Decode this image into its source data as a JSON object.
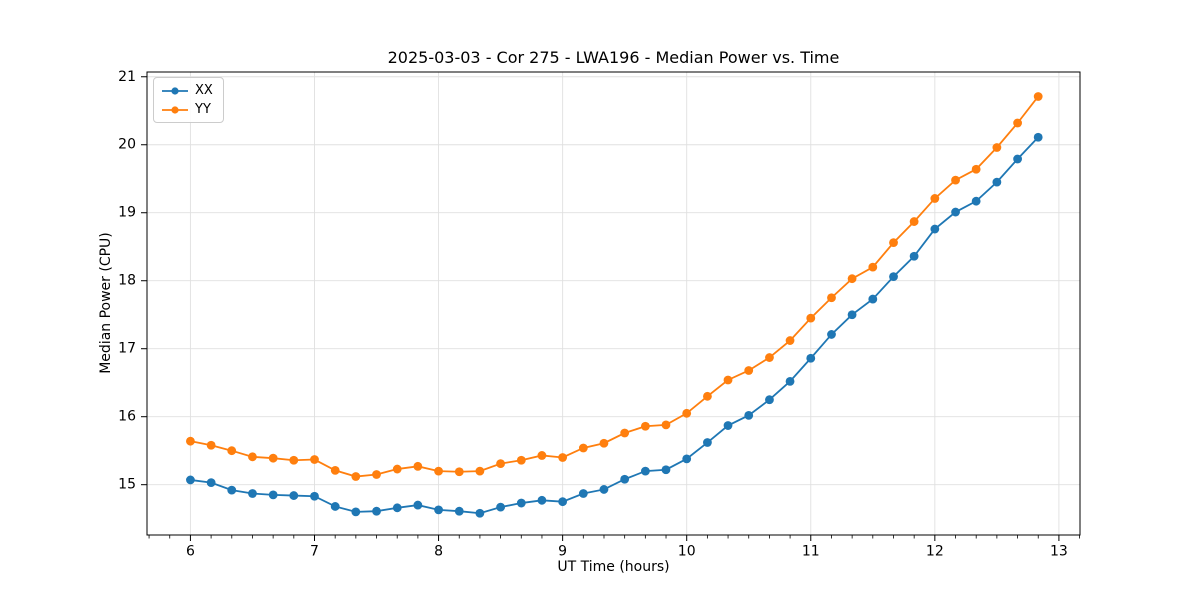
{
  "chart_data": {
    "type": "line",
    "title": "2025-03-03 - Cor 275 - LWA196 - Median Power vs. Time",
    "xlabel": "UT Time (hours)",
    "ylabel": "Median Power (CPU)",
    "x": [
      6.0,
      6.167,
      6.333,
      6.5,
      6.667,
      6.833,
      7.0,
      7.167,
      7.333,
      7.5,
      7.667,
      7.833,
      8.0,
      8.167,
      8.333,
      8.5,
      8.667,
      8.833,
      9.0,
      9.167,
      9.333,
      9.5,
      9.667,
      9.833,
      10.0,
      10.167,
      10.333,
      10.5,
      10.667,
      10.833,
      11.0,
      11.167,
      11.333,
      11.5,
      11.667,
      11.833,
      12.0,
      12.167,
      12.333,
      12.5,
      12.667,
      12.833
    ],
    "series": [
      {
        "name": "XX",
        "color": "#1f77b4",
        "values": [
          15.07,
          15.03,
          14.92,
          14.87,
          14.85,
          14.84,
          14.83,
          14.68,
          14.6,
          14.61,
          14.66,
          14.7,
          14.63,
          14.61,
          14.58,
          14.67,
          14.73,
          14.77,
          14.75,
          14.87,
          14.93,
          15.08,
          15.2,
          15.22,
          15.38,
          15.62,
          15.87,
          16.02,
          16.25,
          16.52,
          16.86,
          17.21,
          17.5,
          17.73,
          18.06,
          18.36,
          18.76,
          19.01,
          19.17,
          19.45,
          19.79,
          20.11
        ]
      },
      {
        "name": "YY",
        "color": "#ff7f0e",
        "values": [
          15.64,
          15.58,
          15.5,
          15.41,
          15.39,
          15.36,
          15.37,
          15.21,
          15.12,
          15.15,
          15.23,
          15.27,
          15.2,
          15.19,
          15.2,
          15.31,
          15.36,
          15.43,
          15.4,
          15.54,
          15.61,
          15.76,
          15.86,
          15.88,
          16.05,
          16.3,
          16.54,
          16.68,
          16.87,
          17.12,
          17.45,
          17.75,
          18.03,
          18.2,
          18.56,
          18.87,
          19.21,
          19.48,
          19.64,
          19.96,
          20.32,
          20.71
        ]
      }
    ],
    "xlim": [
      5.65,
      13.17
    ],
    "ylim": [
      14.26,
      21.07
    ],
    "xticks": [
      6,
      7,
      8,
      9,
      10,
      11,
      12,
      13
    ],
    "yticks": [
      15,
      16,
      17,
      18,
      19,
      20,
      21
    ],
    "x_minor_divisions": 6,
    "grid": true,
    "grid_color": "#e0e0e0",
    "axis_color": "#000000",
    "legend_position": "upper-left"
  }
}
